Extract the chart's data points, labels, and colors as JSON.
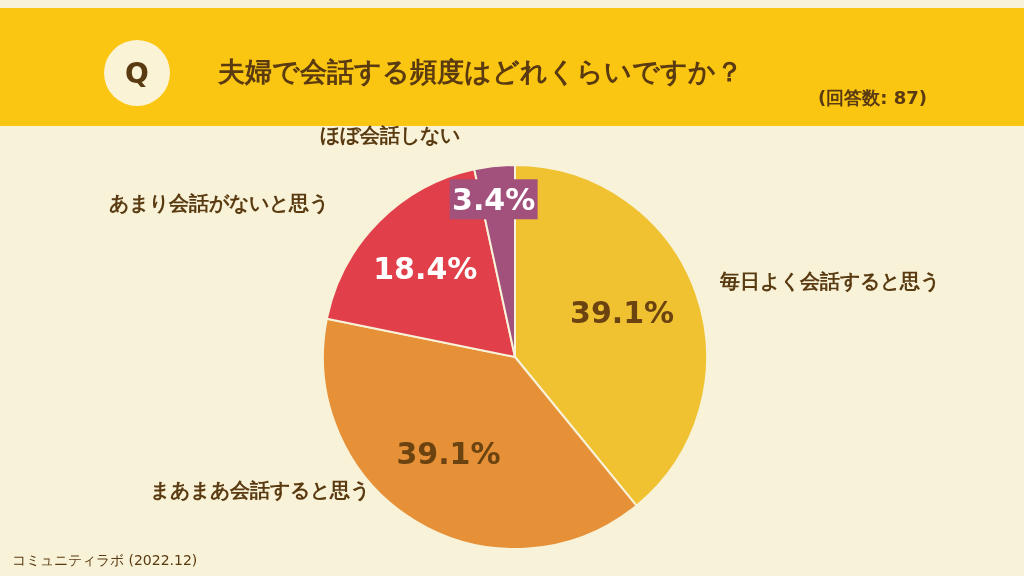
{
  "chart_data": {
    "type": "pie",
    "title": "夫婦で会話する頻度はどれくらいですか？",
    "subtitle": "(回答数: 87)",
    "categories": [
      "毎日よく会話すると思う",
      "まあまあ会話すると思う",
      "あまり会話がないと思う",
      "ほぼ会話しない"
    ],
    "values": [
      39.1,
      39.1,
      18.4,
      3.4
    ],
    "colors": [
      "#f0c232",
      "#e69138",
      "#e13f4a",
      "#a1517c"
    ],
    "value_labels": [
      "39.1%",
      "39.1%",
      "18.4%",
      "3.4%"
    ],
    "annotations": [
      "Q",
      "コミュニティラボ (2022.12)"
    ]
  }
}
